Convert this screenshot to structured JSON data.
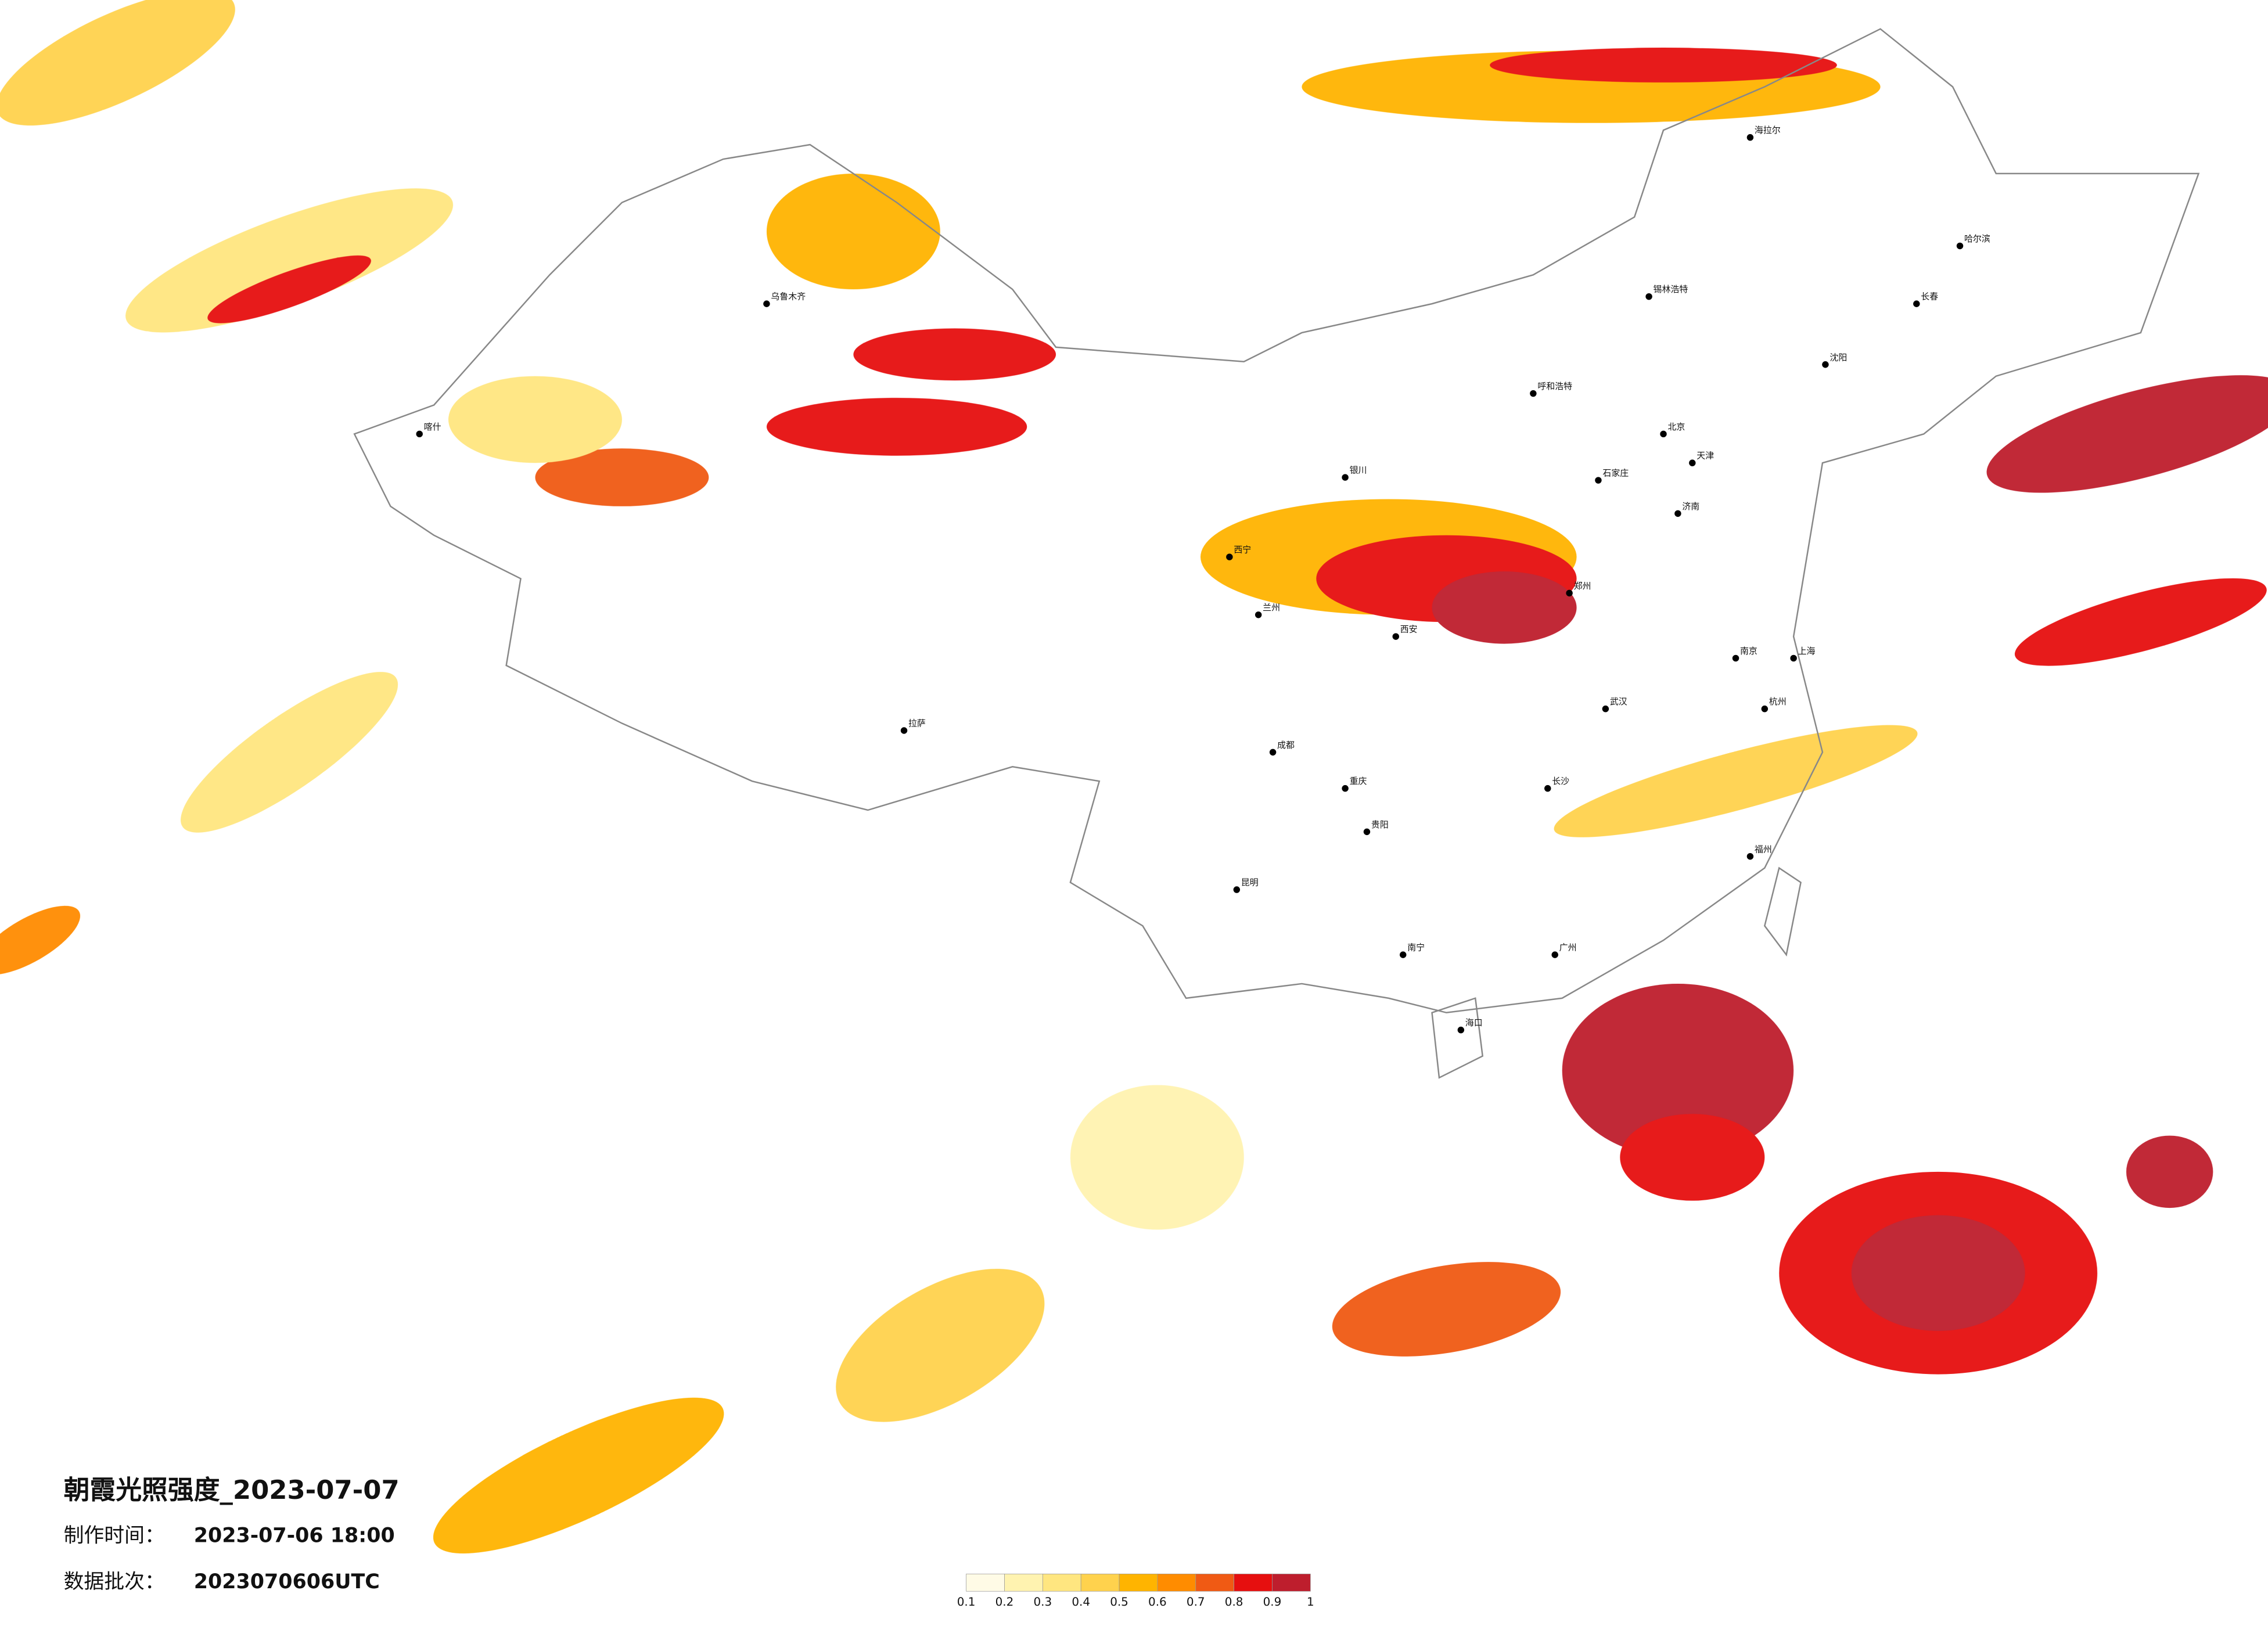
{
  "title": "朝霞光照强度_2023-07-07",
  "make_time_label": "制作时间：",
  "make_time": "2023-07-06 18:00",
  "batch_label": "数据批次：",
  "batch": "2023070606UTC",
  "colorbar": {
    "colors": [
      "#fffbe6",
      "#fff3b0",
      "#ffe680",
      "#ffd24d",
      "#ffb400",
      "#ff8c00",
      "#f05a14",
      "#e60f0f",
      "#be1e2d"
    ],
    "ticks": [
      0.1,
      0.2,
      0.3,
      0.4,
      0.5,
      0.6,
      0.7,
      0.8,
      0.9,
      1
    ]
  },
  "cities": [
    "乌鲁木齐",
    "喀什",
    "拉萨",
    "西宁",
    "兰州",
    "成都",
    "重庆",
    "昆明",
    "贵阳",
    "南宁",
    "广州",
    "海口",
    "长沙",
    "武汉",
    "郑州",
    "西安",
    "银川",
    "呼和浩特",
    "北京",
    "天津",
    "石家庄",
    "济南",
    "南京",
    "上海",
    "杭州",
    "福州",
    "沈阳",
    "长春",
    "哈尔滨",
    "海拉尔",
    "锡林浩特"
  ]
}
